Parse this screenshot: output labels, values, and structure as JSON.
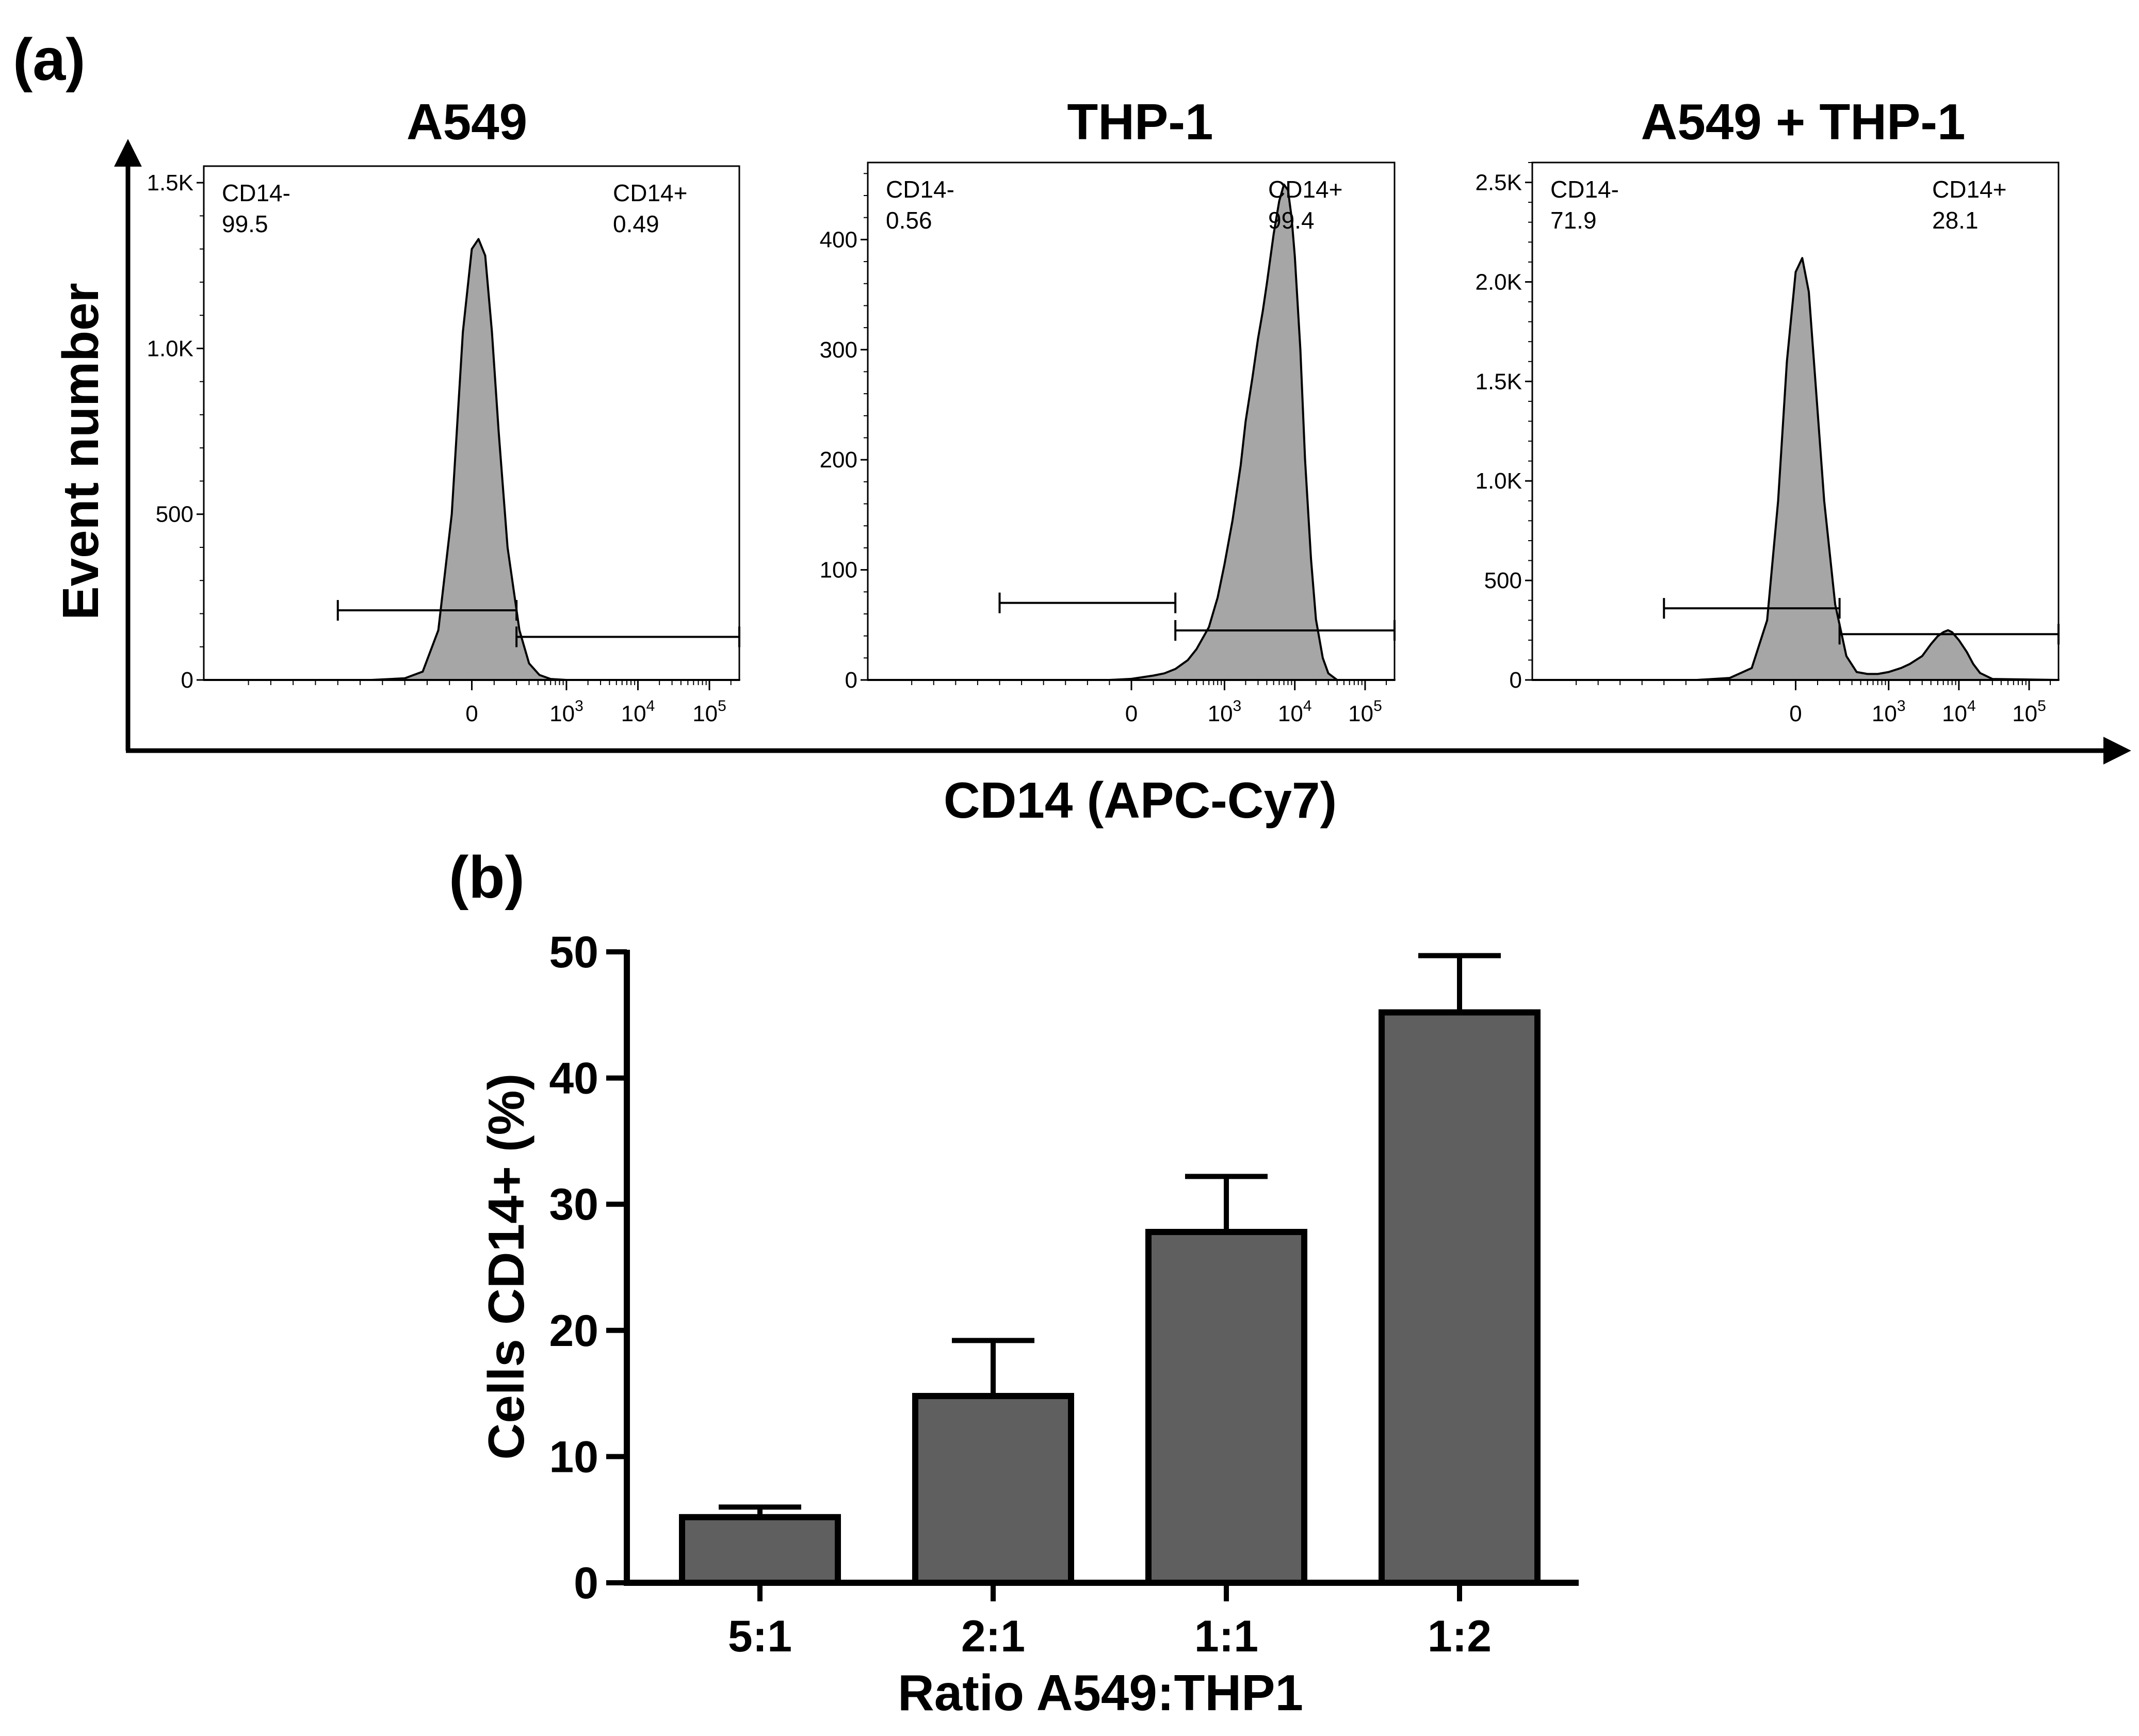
{
  "figure": {
    "panel_a_label": "(a)",
    "panel_b_label": "(b)"
  },
  "colors": {
    "histogram_fill": "#a6a6a6",
    "bar_fill": "#5f5f5f",
    "line": "#000000"
  },
  "chart_data": [
    {
      "type": "area",
      "id": "hist-a549",
      "title": "A549",
      "xlabel": "CD14 (APC-Cy7)",
      "ylabel": "Event number",
      "x_scale": "biexponential",
      "x_ticks": [
        {
          "value": 0,
          "base": "0",
          "exp": ""
        },
        {
          "value": 1000,
          "base": "10",
          "exp": "3"
        },
        {
          "value": 10000,
          "base": "10",
          "exp": "4"
        },
        {
          "value": 100000,
          "base": "10",
          "exp": "5"
        }
      ],
      "ylim": [
        0,
        1550
      ],
      "y_ticks": [
        {
          "value": 0,
          "label": "0"
        },
        {
          "value": 500,
          "label": "500"
        },
        {
          "value": 1000,
          "label": "1.0K"
        },
        {
          "value": 1500,
          "label": "1.5K"
        }
      ],
      "gates": [
        {
          "name": "CD14-",
          "value": "99.5",
          "position": "top-left",
          "x_range": [
            -600,
            200
          ],
          "level": 210
        },
        {
          "name": "CD14+",
          "value": "0.49",
          "position": "top-right",
          "x_range": [
            200,
            262144
          ],
          "level": 130
        }
      ],
      "series": [
        {
          "name": "A549",
          "x": [
            -1200,
            -450,
            -300,
            -220,
            -150,
            -90,
            -40,
            0,
            30,
            60,
            90,
            120,
            160,
            220,
            300,
            420,
            600,
            1000,
            10000,
            262144
          ],
          "y": [
            0,
            0,
            5,
            25,
            150,
            500,
            1050,
            1300,
            1330,
            1280,
            1050,
            750,
            400,
            150,
            50,
            15,
            3,
            0,
            0,
            0
          ]
        }
      ]
    },
    {
      "type": "area",
      "id": "hist-thp1",
      "title": "THP-1",
      "xlabel": "CD14 (APC-Cy7)",
      "ylabel": "Event number",
      "x_scale": "biexponential",
      "x_ticks": [
        {
          "value": 0,
          "base": "0",
          "exp": ""
        },
        {
          "value": 1000,
          "base": "10",
          "exp": "3"
        },
        {
          "value": 10000,
          "base": "10",
          "exp": "4"
        },
        {
          "value": 100000,
          "base": "10",
          "exp": "5"
        }
      ],
      "ylim": [
        0,
        470
      ],
      "y_ticks": [
        {
          "value": 0,
          "label": "0"
        },
        {
          "value": 100,
          "label": "100"
        },
        {
          "value": 200,
          "label": "200"
        },
        {
          "value": 300,
          "label": "300"
        },
        {
          "value": 400,
          "label": "400"
        }
      ],
      "gates": [
        {
          "name": "CD14-",
          "value": "0.56",
          "position": "top-left",
          "x_range": [
            -600,
            200
          ],
          "level": 70
        },
        {
          "name": "CD14+",
          "value": "99.4",
          "position": "top-right",
          "x_range": [
            200,
            262144
          ],
          "level": 45
        }
      ],
      "series": [
        {
          "name": "THP-1",
          "x": [
            -1200,
            -100,
            0,
            100,
            150,
            200,
            300,
            400,
            600,
            800,
            1000,
            1300,
            1700,
            2000,
            2500,
            3000,
            3500,
            4000,
            5000,
            6000,
            7000,
            8000,
            9000,
            10000,
            12000,
            14000,
            17000,
            20000,
            25000,
            30000,
            40000,
            262144
          ],
          "y": [
            0,
            0,
            1,
            4,
            6,
            10,
            18,
            28,
            48,
            75,
            105,
            145,
            195,
            235,
            275,
            310,
            335,
            360,
            405,
            435,
            450,
            445,
            420,
            385,
            300,
            200,
            110,
            55,
            20,
            6,
            0,
            0
          ]
        }
      ]
    },
    {
      "type": "area",
      "id": "hist-mix",
      "title": "A549 + THP-1",
      "xlabel": "CD14 (APC-Cy7)",
      "ylabel": "Event number",
      "x_scale": "biexponential",
      "x_ticks": [
        {
          "value": 0,
          "base": "0",
          "exp": ""
        },
        {
          "value": 1000,
          "base": "10",
          "exp": "3"
        },
        {
          "value": 10000,
          "base": "10",
          "exp": "4"
        },
        {
          "value": 100000,
          "base": "10",
          "exp": "5"
        }
      ],
      "ylim": [
        0,
        2600
      ],
      "y_ticks": [
        {
          "value": 0,
          "label": "0"
        },
        {
          "value": 500,
          "label": "500"
        },
        {
          "value": 1000,
          "label": "1.0K"
        },
        {
          "value": 1500,
          "label": "1.5K"
        },
        {
          "value": 2000,
          "label": "2.0K"
        },
        {
          "value": 2500,
          "label": "2.5K"
        }
      ],
      "gates": [
        {
          "name": "CD14-",
          "value": "71.9",
          "position": "top-left",
          "x_range": [
            -600,
            200
          ],
          "level": 360
        },
        {
          "name": "CD14+",
          "value": "28.1",
          "position": "top-right",
          "x_range": [
            200,
            262144
          ],
          "level": 230
        }
      ],
      "series": [
        {
          "name": "A549 + THP-1",
          "x": [
            -1200,
            -450,
            -300,
            -200,
            -130,
            -80,
            -40,
            0,
            30,
            60,
            90,
            130,
            180,
            250,
            350,
            500,
            700,
            1000,
            1500,
            2000,
            3000,
            4000,
            5000,
            6000,
            7000,
            8000,
            10000,
            13000,
            16000,
            20000,
            30000,
            262144
          ],
          "y": [
            0,
            0,
            10,
            60,
            300,
            900,
            1600,
            2050,
            2120,
            1950,
            1500,
            900,
            380,
            120,
            40,
            30,
            30,
            40,
            60,
            80,
            120,
            180,
            220,
            240,
            250,
            240,
            200,
            140,
            80,
            35,
            5,
            0
          ]
        }
      ]
    },
    {
      "type": "bar",
      "id": "bar-cd14",
      "title": "",
      "xlabel": "Ratio A549:THP1",
      "ylabel": "Cells CD14+ (%)",
      "ylim": [
        0,
        50
      ],
      "y_ticks": [
        0,
        10,
        20,
        30,
        40,
        50
      ],
      "categories": [
        "5:1",
        "2:1",
        "1:1",
        "1:2"
      ],
      "values": [
        5.2,
        14.8,
        27.8,
        45.2
      ],
      "errors": [
        0.8,
        4.4,
        4.4,
        4.5
      ]
    }
  ]
}
